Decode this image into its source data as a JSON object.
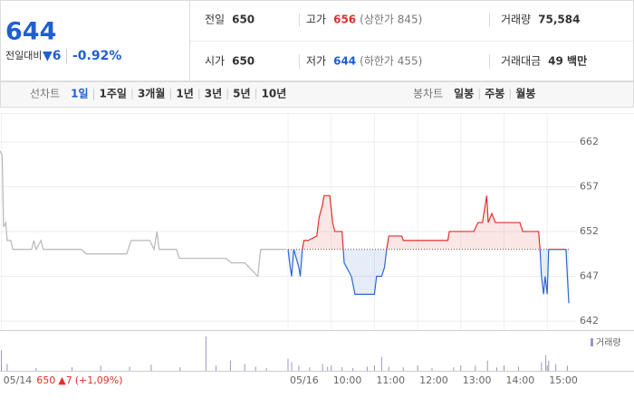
{
  "quote": {
    "price": "644",
    "change_label": "전일대비",
    "change": "▼6",
    "change_pct": "-0.92%",
    "items": [
      {
        "label": "전일",
        "value": "650"
      },
      {
        "label": "고가",
        "value": "656",
        "note": "(상한가 845)"
      },
      {
        "label": "거래량",
        "value": "75,584"
      },
      {
        "label": "시가",
        "value": "650"
      },
      {
        "label": "저가",
        "value": "644",
        "note": "(하한가 455)"
      },
      {
        "label": "거래대금",
        "value": "49 백만"
      }
    ]
  },
  "tabs": {
    "line_label": "선차트",
    "line": [
      "1일",
      "1주일",
      "3개월",
      "1년",
      "3년",
      "5년",
      "10년"
    ],
    "candle_label": "봉차트",
    "candle": [
      "일봉",
      "주봉",
      "월봉"
    ]
  },
  "chart_data": {
    "type": "line",
    "xlim": [
      -400,
      400
    ],
    "ylim": [
      641,
      664
    ],
    "yticks": [
      642,
      647,
      652,
      657,
      662
    ],
    "xticks": [
      {
        "value": -398,
        "label": "05/14"
      },
      {
        "value": 0,
        "label": "05/16"
      },
      {
        "value": 60,
        "label": "10:00"
      },
      {
        "value": 120,
        "label": "11:00"
      },
      {
        "value": 180,
        "label": "12:00"
      },
      {
        "value": 240,
        "label": "13:00"
      },
      {
        "value": 300,
        "label": "14:00"
      },
      {
        "value": 360,
        "label": "15:00"
      }
    ],
    "grid": true,
    "reference_value": 650,
    "prev_close_note": {
      "value": "650",
      "change": "▲7",
      "pct": "(+1,09%)"
    },
    "series": [
      {
        "color": "#b8b8b8",
        "x": [
          -400,
          -397,
          -395,
          -392,
          -390,
          -385,
          -382,
          -356,
          -353,
          -350,
          -343,
          -340,
          -287,
          -280,
          -224,
          -218,
          -192,
          -186,
          -182,
          -179,
          -155,
          -151,
          -86,
          -79,
          -60,
          -42,
          -38,
          -2
        ],
        "values": [
          661,
          660.5,
          652.5,
          653,
          651,
          651,
          650,
          650,
          651,
          650,
          651,
          650,
          650,
          649.5,
          649.5,
          651,
          651,
          650,
          652,
          650,
          650,
          649,
          649,
          648.5,
          648.5,
          647,
          650,
          650
        ]
      },
      {
        "color": "#e0302a",
        "down_color": "#2a68cf",
        "x": [
          0,
          3,
          5,
          8,
          15,
          17,
          20,
          22,
          28,
          40,
          43,
          48,
          50,
          58,
          62,
          65,
          75,
          78,
          88,
          93,
          120,
          123,
          130,
          134,
          137,
          140,
          158,
          160,
          222,
          224,
          258,
          264,
          270,
          276,
          278,
          283,
          288,
          322,
          326,
          348,
          350,
          352,
          355,
          357,
          360,
          362,
          386,
          390
        ],
        "values": [
          650,
          648,
          647,
          650,
          648,
          647,
          650,
          651,
          651,
          651.5,
          653.5,
          655,
          656,
          656,
          653,
          652,
          652,
          648.5,
          647,
          645,
          645,
          647,
          647,
          648,
          650,
          651.5,
          651.5,
          651,
          651,
          652,
          652,
          653,
          653,
          656,
          653,
          654,
          653,
          653,
          652,
          652,
          650,
          647,
          645,
          647,
          645,
          650,
          650,
          644
        ]
      }
    ],
    "volume": {
      "label": "거래량",
      "color": "#9c95c6",
      "ylim": [
        0,
        100
      ],
      "x": [
        -398,
        -390,
        -350,
        -300,
        -260,
        -220,
        -190,
        -150,
        -114,
        -100,
        -80,
        -60,
        -45,
        -30,
        0,
        5,
        15,
        30,
        48,
        55,
        75,
        90,
        110,
        130,
        140,
        160,
        200,
        230,
        260,
        277,
        290,
        320,
        352,
        358,
        362,
        372,
        388
      ],
      "values": [
        60,
        20,
        8,
        10,
        15,
        12,
        18,
        10,
        100,
        15,
        30,
        20,
        12,
        8,
        35,
        25,
        15,
        10,
        20,
        12,
        10,
        8,
        12,
        40,
        12,
        10,
        8,
        10,
        15,
        30,
        10,
        12,
        25,
        45,
        30,
        20,
        15
      ]
    }
  }
}
